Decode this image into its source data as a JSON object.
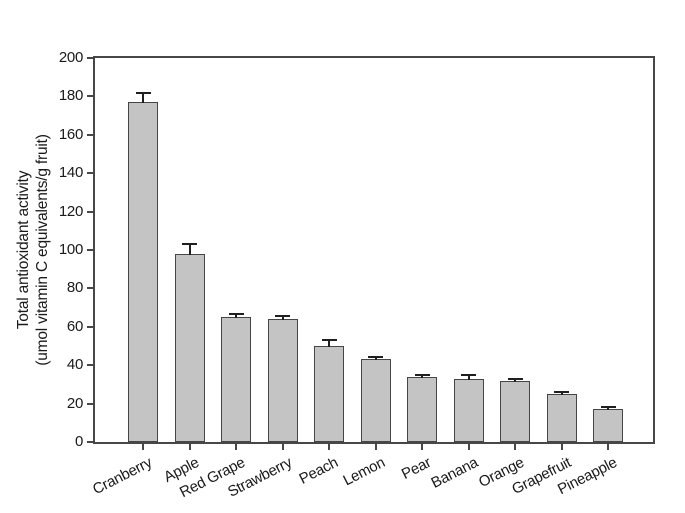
{
  "chart_data": {
    "type": "bar",
    "title": "",
    "xlabel": "",
    "ylabel_line1": "Total antioxidant activity",
    "ylabel_line2": "(umol vitamin C equivalents/g fruit)",
    "categories": [
      "Cranberry",
      "Apple",
      "Red Grape",
      "Strawberry",
      "Peach",
      "Lemon",
      "Pear",
      "Banana",
      "Orange",
      "Grapefruit",
      "Pineapple"
    ],
    "values": [
      177,
      98,
      65,
      64,
      50,
      43,
      34,
      33,
      32,
      25,
      17
    ],
    "error_plus": [
      5,
      5,
      1.5,
      1.5,
      3,
      1.5,
      1,
      2,
      1,
      1,
      1
    ],
    "ylim": [
      0,
      200
    ],
    "yticks": [
      0,
      20,
      40,
      60,
      80,
      100,
      120,
      140,
      160,
      180,
      200
    ],
    "grid": false,
    "legend": null,
    "bar_fill_color": "#c4c4c4",
    "bar_border_color": "#454545",
    "error_bar_color": "#1f1f1f",
    "axis_color": "#474747",
    "background_color": "#ffffff"
  }
}
